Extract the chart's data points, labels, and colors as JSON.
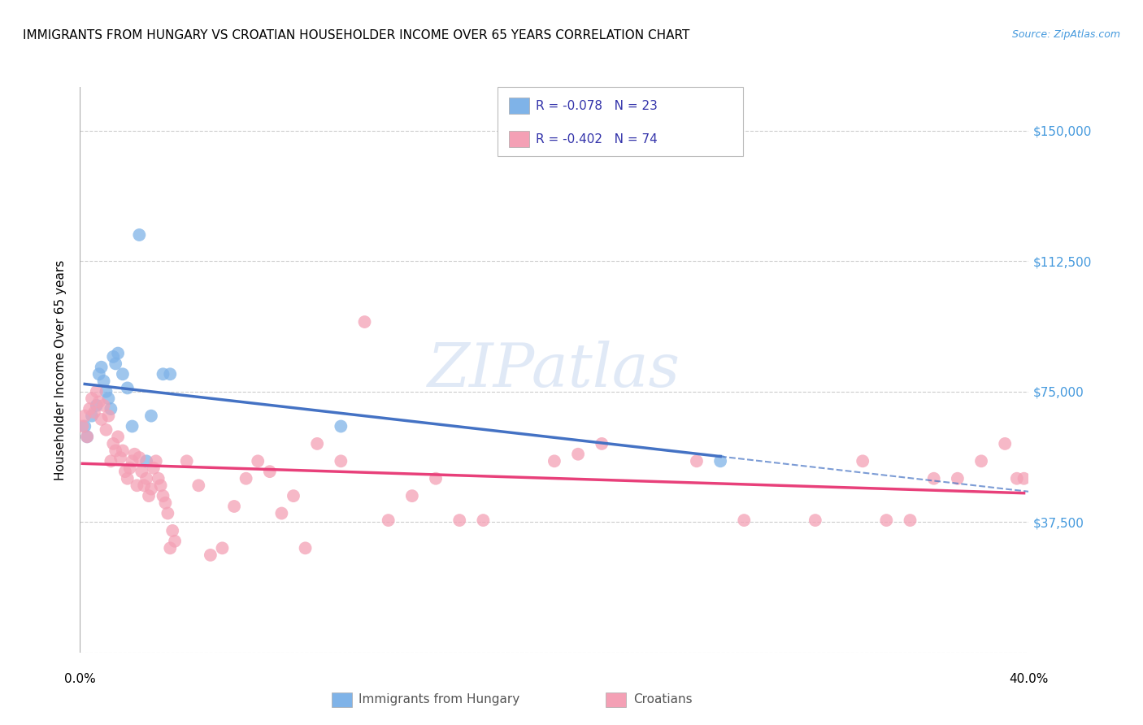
{
  "title": "IMMIGRANTS FROM HUNGARY VS CROATIAN HOUSEHOLDER INCOME OVER 65 YEARS CORRELATION CHART",
  "source": "Source: ZipAtlas.com",
  "ylabel": "Householder Income Over 65 years",
  "xlim": [
    0.0,
    0.4
  ],
  "ylim": [
    0,
    162500
  ],
  "yticks": [
    0,
    37500,
    75000,
    112500,
    150000
  ],
  "ytick_labels": [
    "",
    "$37,500",
    "$75,000",
    "$112,500",
    "$150,000"
  ],
  "hungary_R": -0.078,
  "hungary_N": 23,
  "croatian_R": -0.402,
  "croatian_N": 74,
  "hungary_color": "#7fb3e8",
  "croatian_color": "#f4a0b5",
  "hungary_line_color": "#4472c4",
  "croatian_line_color": "#e8407a",
  "hungary_x": [
    0.002,
    0.003,
    0.005,
    0.007,
    0.008,
    0.009,
    0.01,
    0.011,
    0.012,
    0.013,
    0.014,
    0.015,
    0.016,
    0.018,
    0.02,
    0.022,
    0.025,
    0.028,
    0.03,
    0.035,
    0.038,
    0.11,
    0.27
  ],
  "hungary_y": [
    65000,
    62000,
    68000,
    71000,
    80000,
    82000,
    78000,
    75000,
    73000,
    70000,
    85000,
    83000,
    86000,
    80000,
    76000,
    65000,
    120000,
    55000,
    68000,
    80000,
    80000,
    65000,
    55000
  ],
  "croatian_x": [
    0.001,
    0.002,
    0.003,
    0.004,
    0.005,
    0.006,
    0.007,
    0.008,
    0.009,
    0.01,
    0.011,
    0.012,
    0.013,
    0.014,
    0.015,
    0.016,
    0.017,
    0.018,
    0.019,
    0.02,
    0.021,
    0.022,
    0.023,
    0.024,
    0.025,
    0.026,
    0.027,
    0.028,
    0.029,
    0.03,
    0.031,
    0.032,
    0.033,
    0.034,
    0.035,
    0.036,
    0.037,
    0.038,
    0.039,
    0.04,
    0.045,
    0.05,
    0.055,
    0.06,
    0.065,
    0.07,
    0.075,
    0.08,
    0.085,
    0.09,
    0.095,
    0.1,
    0.11,
    0.12,
    0.13,
    0.14,
    0.15,
    0.16,
    0.17,
    0.2,
    0.21,
    0.22,
    0.26,
    0.28,
    0.31,
    0.33,
    0.34,
    0.35,
    0.36,
    0.37,
    0.38,
    0.39,
    0.395,
    0.398
  ],
  "croatian_y": [
    65000,
    68000,
    62000,
    70000,
    73000,
    69000,
    75000,
    72000,
    67000,
    71000,
    64000,
    68000,
    55000,
    60000,
    58000,
    62000,
    56000,
    58000,
    52000,
    50000,
    53000,
    55000,
    57000,
    48000,
    56000,
    52000,
    48000,
    50000,
    45000,
    47000,
    53000,
    55000,
    50000,
    48000,
    45000,
    43000,
    40000,
    30000,
    35000,
    32000,
    55000,
    48000,
    28000,
    30000,
    42000,
    50000,
    55000,
    52000,
    40000,
    45000,
    30000,
    60000,
    55000,
    95000,
    38000,
    45000,
    50000,
    38000,
    38000,
    55000,
    57000,
    60000,
    55000,
    38000,
    38000,
    55000,
    38000,
    38000,
    50000,
    50000,
    55000,
    60000,
    50000,
    50000
  ]
}
